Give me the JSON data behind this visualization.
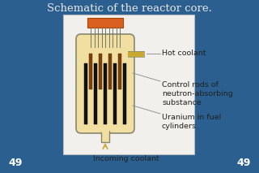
{
  "title": "Schematic of the reactor core.",
  "background_color": "#2a5f8f",
  "title_color": "#e8e8e8",
  "title_fontsize": 9.5,
  "label_fontsize": 6.8,
  "page_number": "49",
  "labels": {
    "hot_coolant": "Hot coolant",
    "control_rods": "Control rods of\nneutron-absorbing\nsubstance",
    "uranium": "Uranium in fuel\ncylinders",
    "incoming": "Incoming coolant"
  },
  "vessel_fill": "#f0dfa0",
  "vessel_edge": "#888870",
  "control_rod_color": "#7a4010",
  "fuel_rod_color": "#111111",
  "top_block_fill": "#d96020",
  "top_block_edge": "#aa4400",
  "coolant_color": "#c8a830",
  "line_color": "#888888",
  "label_color": "#222222",
  "white_bg": "#f2f0ec",
  "stem_color": "#777766"
}
